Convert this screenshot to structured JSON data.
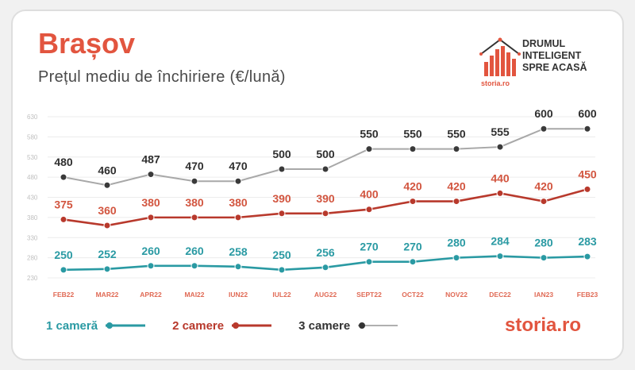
{
  "header": {
    "city": "Brașov",
    "subtitle": "Prețul mediu de închiriere (€/lună)"
  },
  "branding": {
    "tagline_lines": [
      "DRUMUL",
      "INTELIGENT",
      "SPRE ACASĂ"
    ],
    "mini_brand": "storia.ro",
    "brand_bottom": "storia.ro",
    "brand_color": "#e2553f"
  },
  "legend": {
    "items": [
      {
        "label": "1 cameră",
        "color": "#2a9aa3"
      },
      {
        "label": "2 camere",
        "color": "#b8392c"
      },
      {
        "label": "3 camere",
        "color": "#3a3a3a"
      }
    ]
  },
  "chart_data": {
    "type": "line",
    "categories": [
      "FEB22",
      "MAR22",
      "APR22",
      "MAI22",
      "IUN22",
      "IUL22",
      "AUG22",
      "SEPT22",
      "OCT22",
      "NOV22",
      "DEC22",
      "IAN23",
      "FEB23"
    ],
    "y_ticks": [
      230,
      280,
      330,
      380,
      430,
      480,
      530,
      580,
      630
    ],
    "ylim": [
      230,
      630
    ],
    "grid": true,
    "legend_position": "bottom",
    "series": [
      {
        "name": "1 cameră",
        "color": "#2a9aa3",
        "label_color": "#2a9aa3",
        "values": [
          250,
          252,
          260,
          260,
          258,
          250,
          256,
          270,
          270,
          280,
          284,
          280,
          283
        ]
      },
      {
        "name": "2 camere",
        "color": "#b8392c",
        "label_color": "#d2553f",
        "values": [
          375,
          360,
          380,
          380,
          380,
          390,
          390,
          400,
          420,
          420,
          440,
          420,
          450
        ]
      },
      {
        "name": "3 camere",
        "color": "#3a3a3a",
        "label_color": "#2f2f2f",
        "values": [
          480,
          460,
          487,
          470,
          470,
          500,
          500,
          550,
          550,
          550,
          555,
          600,
          600
        ]
      }
    ]
  }
}
